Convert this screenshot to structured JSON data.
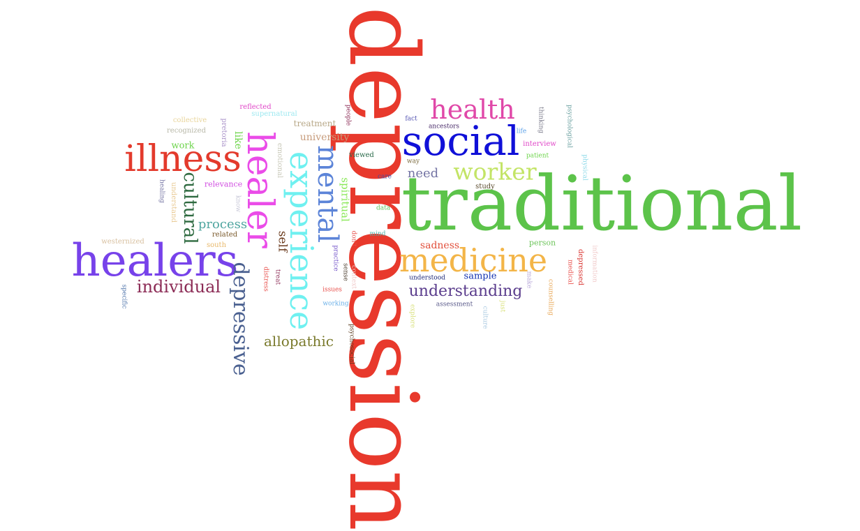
{
  "words": [
    {
      "id": "depression",
      "text": "depression",
      "color": "#e8392c",
      "weight": 100,
      "orientation": "vertical"
    },
    {
      "id": "traditional",
      "text": "traditional",
      "color": "#5cc34a",
      "weight": 100,
      "orientation": "horizontal"
    },
    {
      "id": "social",
      "text": "social",
      "color": "#1010d8",
      "weight": 50,
      "orientation": "horizontal"
    },
    {
      "id": "medicine",
      "text": "medicine",
      "color": "#f3b548",
      "weight": 44,
      "orientation": "horizontal"
    },
    {
      "id": "healers",
      "text": "healers",
      "color": "#7742ea",
      "weight": 50,
      "orientation": "horizontal"
    },
    {
      "id": "illness",
      "text": "illness",
      "color": "#e33a2c",
      "weight": 40,
      "orientation": "horizontal"
    },
    {
      "id": "healer",
      "text": "healer",
      "color": "#ea4ce8",
      "weight": 48,
      "orientation": "vertical"
    },
    {
      "id": "experience",
      "text": "experience",
      "color": "#6ff0f0",
      "weight": 44,
      "orientation": "vertical"
    },
    {
      "id": "mental",
      "text": "mental",
      "color": "#5c84d8",
      "weight": 40,
      "orientation": "vertical"
    },
    {
      "id": "health",
      "text": "health",
      "color": "#e048a8",
      "weight": 33,
      "orientation": "horizontal"
    },
    {
      "id": "worker",
      "text": "worker",
      "color": "#c3e466",
      "weight": 30,
      "orientation": "horizontal"
    },
    {
      "id": "depressive",
      "text": "depressive",
      "color": "#4a6090",
      "weight": 28,
      "orientation": "vertical"
    },
    {
      "id": "cultural",
      "text": "cultural",
      "color": "#2e6a40",
      "weight": 24,
      "orientation": "vertical"
    },
    {
      "id": "individual",
      "text": "individual",
      "color": "#8c2c56",
      "weight": 22,
      "orientation": "horizontal"
    },
    {
      "id": "understanding",
      "text": "understanding",
      "color": "#5a3c8c",
      "weight": 21,
      "orientation": "horizontal"
    },
    {
      "id": "allopathic",
      "text": "allopathic",
      "color": "#7a7a2c",
      "weight": 19,
      "orientation": "horizontal"
    },
    {
      "id": "process",
      "text": "process",
      "color": "#50a6a0",
      "weight": 17,
      "orientation": "horizontal"
    },
    {
      "id": "need",
      "text": "need",
      "color": "#7474a4",
      "weight": 17,
      "orientation": "horizontal"
    },
    {
      "id": "self",
      "text": "self",
      "color": "#6a3a1c",
      "weight": 16,
      "orientation": "vertical"
    },
    {
      "id": "spiritual",
      "text": "spiritual",
      "color": "#8ae858",
      "weight": 15,
      "orientation": "vertical"
    },
    {
      "id": "sadness",
      "text": "sadness",
      "color": "#e2503c",
      "weight": 14,
      "orientation": "horizontal"
    },
    {
      "id": "university",
      "text": "university",
      "color": "#c79c7c",
      "weight": 14,
      "orientation": "horizontal"
    },
    {
      "id": "like",
      "text": "like",
      "color": "#6cd44a",
      "weight": 14,
      "orientation": "vertical"
    },
    {
      "id": "work",
      "text": "work",
      "color": "#6cd44a",
      "weight": 13,
      "orientation": "horizontal"
    },
    {
      "id": "sample",
      "text": "sample",
      "color": "#1030b0",
      "weight": 13,
      "orientation": "horizontal"
    },
    {
      "id": "treatment",
      "text": "treatment",
      "color": "#b8a888",
      "weight": 12,
      "orientation": "horizontal"
    },
    {
      "id": "relevance",
      "text": "relevance",
      "color": "#d04ce0",
      "weight": 11,
      "orientation": "horizontal"
    },
    {
      "id": "person",
      "text": "person",
      "color": "#6cc45a",
      "weight": 11,
      "orientation": "horizontal"
    },
    {
      "id": "interview",
      "text": "interview",
      "color": "#e048c8",
      "weight": 10,
      "orientation": "horizontal"
    },
    {
      "id": "viewed",
      "text": "viewed",
      "color": "#2a6a4a",
      "weight": 10,
      "orientation": "horizontal"
    },
    {
      "id": "study",
      "text": "study",
      "color": "#5a4a2c",
      "weight": 10,
      "orientation": "horizontal"
    },
    {
      "id": "related",
      "text": "related",
      "color": "#7a5a2c",
      "weight": 10,
      "orientation": "horizontal"
    },
    {
      "id": "south",
      "text": "south",
      "color": "#e8b86a",
      "weight": 10,
      "orientation": "horizontal"
    },
    {
      "id": "westernized",
      "text": "westernized",
      "color": "#d8c0a0",
      "weight": 10,
      "orientation": "horizontal"
    },
    {
      "id": "collective",
      "text": "collective",
      "color": "#e8d49a",
      "weight": 10,
      "orientation": "horizontal"
    },
    {
      "id": "recognized",
      "text": "recognized",
      "color": "#b8b8a8",
      "weight": 10,
      "orientation": "horizontal"
    },
    {
      "id": "reflected",
      "text": "reflected",
      "color": "#e048c8",
      "weight": 10,
      "orientation": "horizontal"
    },
    {
      "id": "supernatural",
      "text": "supernatural",
      "color": "#9ce8f0",
      "weight": 10,
      "orientation": "horizontal"
    },
    {
      "id": "pretoria",
      "text": "pretoria",
      "color": "#a890c8",
      "weight": 10,
      "orientation": "vertical"
    },
    {
      "id": "emotional",
      "text": "emotional",
      "color": "#c8c8b8",
      "weight": 10,
      "orientation": "vertical"
    },
    {
      "id": "understand",
      "text": "understand",
      "color": "#e8c890",
      "weight": 10,
      "orientation": "vertical"
    },
    {
      "id": "healing",
      "text": "healing",
      "color": "#7070a0",
      "weight": 9,
      "orientation": "vertical"
    },
    {
      "id": "know",
      "text": "know",
      "color": "#c8c8d8",
      "weight": 9,
      "orientation": "vertical"
    },
    {
      "id": "specific",
      "text": "specific",
      "color": "#4a70a8",
      "weight": 9,
      "orientation": "vertical"
    },
    {
      "id": "distress",
      "text": "distress",
      "color": "#e8504c",
      "weight": 9,
      "orientation": "vertical"
    },
    {
      "id": "treat",
      "text": "treat",
      "color": "#8c2c56",
      "weight": 9,
      "orientation": "vertical"
    },
    {
      "id": "people",
      "text": "people",
      "color": "#8c2c56",
      "weight": 9,
      "orientation": "vertical"
    },
    {
      "id": "fact",
      "text": "fact",
      "color": "#5050b0",
      "weight": 9,
      "orientation": "horizontal"
    },
    {
      "id": "ancestors",
      "text": "ancestors",
      "color": "#4a2c6a",
      "weight": 9,
      "orientation": "horizontal"
    },
    {
      "id": "way",
      "text": "way",
      "color": "#7a6a3c",
      "weight": 9,
      "orientation": "horizontal"
    },
    {
      "id": "care",
      "text": "care",
      "color": "#4a4aa0",
      "weight": 9,
      "orientation": "horizontal"
    },
    {
      "id": "data",
      "text": "data",
      "color": "#5cc45a",
      "weight": 9,
      "orientation": "horizontal"
    },
    {
      "id": "mind",
      "text": "mind",
      "color": "#50b0a8",
      "weight": 9,
      "orientation": "horizontal"
    },
    {
      "id": "dont",
      "text": "don't",
      "color": "#e8504c",
      "weight": 9,
      "orientation": "vertical"
    },
    {
      "id": "practice",
      "text": "practice",
      "color": "#7050c8",
      "weight": 9,
      "orientation": "vertical"
    },
    {
      "id": "sense",
      "text": "sense",
      "color": "#4a3c2c",
      "weight": 9,
      "orientation": "vertical"
    },
    {
      "id": "context",
      "text": "context",
      "color": "#f0c8c8",
      "weight": 9,
      "orientation": "vertical"
    },
    {
      "id": "issues",
      "text": "issues",
      "color": "#e8504c",
      "weight": 9,
      "orientation": "horizontal"
    },
    {
      "id": "working",
      "text": "working",
      "color": "#6ab0e8",
      "weight": 9,
      "orientation": "horizontal"
    },
    {
      "id": "psychosocial",
      "text": "psychosocial",
      "color": "#5a3a1c",
      "weight": 9,
      "orientation": "vertical"
    },
    {
      "id": "understood",
      "text": "understood",
      "color": "#1e2a7a",
      "weight": 9,
      "orientation": "horizontal"
    },
    {
      "id": "explore",
      "text": "explore",
      "color": "#d8e07a",
      "weight": 9,
      "orientation": "vertical"
    },
    {
      "id": "assessment",
      "text": "assessment",
      "color": "#5a5a8a",
      "weight": 9,
      "orientation": "horizontal"
    },
    {
      "id": "culture",
      "text": "culture",
      "color": "#a8c8e0",
      "weight": 9,
      "orientation": "vertical"
    },
    {
      "id": "just",
      "text": "just",
      "color": "#d8e07a",
      "weight": 9,
      "orientation": "vertical"
    },
    {
      "id": "life",
      "text": "life",
      "color": "#5aa0e8",
      "weight": 9,
      "orientation": "horizontal"
    },
    {
      "id": "patient",
      "text": "patient",
      "color": "#6cd44a",
      "weight": 9,
      "orientation": "horizontal"
    },
    {
      "id": "thinking",
      "text": "thinking",
      "color": "#7a7a8a",
      "weight": 9,
      "orientation": "vertical"
    },
    {
      "id": "psychological",
      "text": "psychological",
      "color": "#6aa0a0",
      "weight": 9,
      "orientation": "vertical"
    },
    {
      "id": "physical",
      "text": "physical",
      "color": "#8ad8e8",
      "weight": 9,
      "orientation": "vertical"
    },
    {
      "id": "make",
      "text": "make",
      "color": "#b8a8d8",
      "weight": 9,
      "orientation": "vertical"
    },
    {
      "id": "counselling",
      "text": "counselling",
      "color": "#e8a858",
      "weight": 9,
      "orientation": "vertical"
    },
    {
      "id": "medical",
      "text": "medical",
      "color": "#e8504c",
      "weight": 9,
      "orientation": "vertical"
    },
    {
      "id": "depressed",
      "text": "depressed",
      "color": "#d8302c",
      "weight": 10,
      "orientation": "vertical"
    },
    {
      "id": "information",
      "text": "information",
      "color": "#f0c8c8",
      "weight": 9,
      "orientation": "vertical"
    }
  ]
}
